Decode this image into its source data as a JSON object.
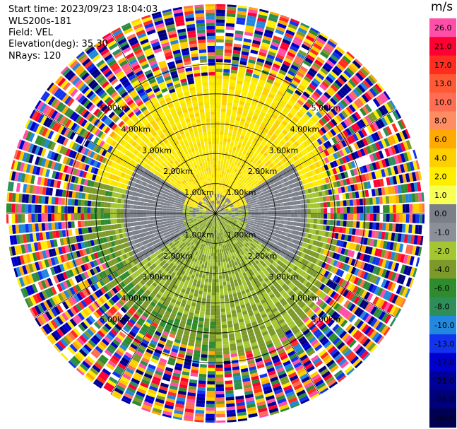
{
  "header": {
    "start_time": "Start time: 2023/09/23 18:04:03",
    "instrument": "WLS200s-181",
    "field": "Field: VEL",
    "elevation": "Elevation(deg): 35.30",
    "nrays": "NRays: 120"
  },
  "chart_data": {
    "type": "heatmap",
    "projection": "polar-ppi",
    "nrays": 120,
    "range_rings_km": [
      1,
      2,
      3,
      4,
      5
    ],
    "ring_labels": [
      "1.00km",
      "2.00km",
      "3.00km",
      "4.00km",
      "5.00km"
    ],
    "max_range_km": 7,
    "spokes_deg": [
      0,
      30,
      60,
      90,
      120,
      150
    ],
    "colorbar": {
      "unit": "m/s",
      "ticks": [
        "26.0",
        "21.0",
        "17.0",
        "13.0",
        "10.0",
        "8.0",
        "6.0",
        "4.0",
        "2.0",
        "1.0",
        "0.0",
        "-1.0",
        "-2.0",
        "-4.0",
        "-6.0",
        "-8.0",
        "-10.0",
        "-13.0",
        "-17.0",
        "-21.0",
        "-26.0",
        "-30.0"
      ],
      "colors": [
        "#ff4fa8",
        "#ff0033",
        "#ff2d1f",
        "#ff5a35",
        "#ff6e52",
        "#ff8c63",
        "#ffaa00",
        "#ffd000",
        "#ffee00",
        "#f8ff55",
        "#7a7f88",
        "#8a8f98",
        "#a4c630",
        "#7c9a2a",
        "#2e8b2e",
        "#2e8e5a",
        "#2288dd",
        "#1133ee",
        "#0000cc",
        "#000099",
        "#00007a",
        "#000050"
      ]
    }
  }
}
